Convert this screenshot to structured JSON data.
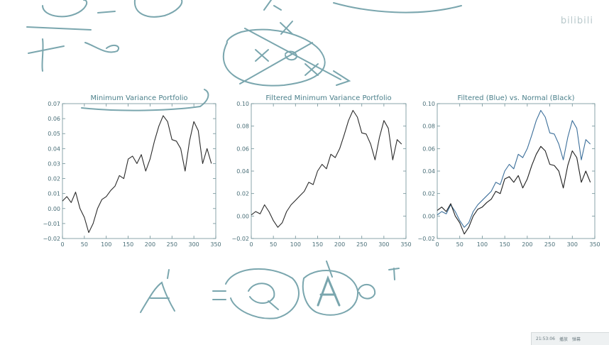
{
  "watermark": "bilibili",
  "taskbar": {
    "clock": "21:53:06",
    "item1": "播放",
    "item2": "弹幕"
  },
  "colors": {
    "line": "#2b2b2b",
    "axis": "#6e8f96",
    "text": "#4a7f8a",
    "ink": "#6e9aa3"
  },
  "chart_data": [
    {
      "type": "line",
      "title": "Minimum Variance Portfolio",
      "xlim": [
        0,
        350
      ],
      "ylim": [
        -0.02,
        0.07
      ],
      "xticks": [
        0,
        50,
        100,
        150,
        200,
        250,
        300,
        350
      ],
      "yticks": [
        -0.02,
        -0.01,
        0.0,
        0.01,
        0.02,
        0.03,
        0.04,
        0.05,
        0.06,
        0.07
      ],
      "ytick_labels": [
        "−0.02",
        "−0.01",
        "0.00",
        "0.01",
        "0.02",
        "0.03",
        "0.04",
        "0.05",
        "0.06",
        "0.07"
      ],
      "xtick_labels": [
        "0",
        "50",
        "100",
        "150",
        "200",
        "250",
        "300",
        "350"
      ],
      "grid": false,
      "series": [
        {
          "x": [
            0,
            10,
            20,
            30,
            40,
            50,
            60,
            70,
            80,
            90,
            100,
            110,
            120,
            130,
            140,
            150,
            160,
            170,
            180,
            190,
            200,
            210,
            220,
            230,
            240,
            250,
            260,
            270,
            280,
            290,
            300,
            310,
            320,
            330,
            340
          ],
          "y": [
            0.005,
            0.008,
            0.004,
            0.011,
            0.0,
            -0.006,
            -0.016,
            -0.01,
            0.0,
            0.006,
            0.008,
            0.012,
            0.015,
            0.022,
            0.02,
            0.033,
            0.035,
            0.03,
            0.036,
            0.025,
            0.033,
            0.045,
            0.055,
            0.062,
            0.058,
            0.046,
            0.045,
            0.04,
            0.025,
            0.045,
            0.058,
            0.052,
            0.03,
            0.04,
            0.03
          ]
        }
      ]
    },
    {
      "type": "line",
      "title": "Filtered Minimum Variance Portfolio",
      "xlim": [
        0,
        350
      ],
      "ylim": [
        -0.02,
        0.1
      ],
      "xticks": [
        0,
        50,
        100,
        150,
        200,
        250,
        300,
        350
      ],
      "yticks": [
        -0.02,
        0.0,
        0.02,
        0.04,
        0.06,
        0.08,
        0.1
      ],
      "ytick_labels": [
        "−0.02",
        "0.00",
        "0.02",
        "0.04",
        "0.06",
        "0.08",
        "0.10"
      ],
      "xtick_labels": [
        "0",
        "50",
        "100",
        "150",
        "200",
        "250",
        "300",
        "350"
      ],
      "grid": false,
      "series": [
        {
          "x": [
            0,
            10,
            20,
            30,
            40,
            50,
            60,
            70,
            80,
            90,
            100,
            110,
            120,
            130,
            140,
            150,
            160,
            170,
            180,
            190,
            200,
            210,
            220,
            230,
            240,
            250,
            260,
            270,
            280,
            290,
            300,
            310,
            320,
            330,
            340
          ],
          "y": [
            0.001,
            0.004,
            0.002,
            0.01,
            0.004,
            -0.004,
            -0.01,
            -0.006,
            0.004,
            0.01,
            0.014,
            0.018,
            0.022,
            0.03,
            0.028,
            0.04,
            0.046,
            0.042,
            0.055,
            0.052,
            0.06,
            0.072,
            0.085,
            0.094,
            0.088,
            0.074,
            0.073,
            0.064,
            0.05,
            0.07,
            0.085,
            0.078,
            0.05,
            0.068,
            0.064
          ]
        }
      ]
    },
    {
      "type": "line",
      "title": "Filtered (Blue) vs. Normal (Black)",
      "xlim": [
        0,
        350
      ],
      "ylim": [
        -0.02,
        0.1
      ],
      "xticks": [
        0,
        50,
        100,
        150,
        200,
        250,
        300,
        350
      ],
      "yticks": [
        -0.02,
        0.0,
        0.02,
        0.04,
        0.06,
        0.08,
        0.1
      ],
      "ytick_labels": [
        "−0.02",
        "0.00",
        "0.02",
        "0.04",
        "0.06",
        "0.08",
        "0.10"
      ],
      "xtick_labels": [
        "0",
        "50",
        "100",
        "150",
        "200",
        "250",
        "300",
        "350"
      ],
      "grid": false,
      "series": [
        {
          "x": [
            0,
            10,
            20,
            30,
            40,
            50,
            60,
            70,
            80,
            90,
            100,
            110,
            120,
            130,
            140,
            150,
            160,
            170,
            180,
            190,
            200,
            210,
            220,
            230,
            240,
            250,
            260,
            270,
            280,
            290,
            300,
            310,
            320,
            330,
            340
          ],
          "y": [
            0.001,
            0.004,
            0.002,
            0.01,
            0.004,
            -0.004,
            -0.01,
            -0.006,
            0.004,
            0.01,
            0.014,
            0.018,
            0.022,
            0.03,
            0.028,
            0.04,
            0.046,
            0.042,
            0.055,
            0.052,
            0.06,
            0.072,
            0.085,
            0.094,
            0.088,
            0.074,
            0.073,
            0.064,
            0.05,
            0.07,
            0.085,
            0.078,
            0.05,
            0.068,
            0.064
          ],
          "color": "#3c6f9a"
        },
        {
          "x": [
            0,
            10,
            20,
            30,
            40,
            50,
            60,
            70,
            80,
            90,
            100,
            110,
            120,
            130,
            140,
            150,
            160,
            170,
            180,
            190,
            200,
            210,
            220,
            230,
            240,
            250,
            260,
            270,
            280,
            290,
            300,
            310,
            320,
            330,
            340
          ],
          "y": [
            0.005,
            0.008,
            0.004,
            0.011,
            0.0,
            -0.006,
            -0.016,
            -0.01,
            0.0,
            0.006,
            0.008,
            0.012,
            0.015,
            0.022,
            0.02,
            0.033,
            0.035,
            0.03,
            0.036,
            0.025,
            0.033,
            0.045,
            0.055,
            0.062,
            0.058,
            0.046,
            0.045,
            0.04,
            0.025,
            0.045,
            0.058,
            0.052,
            0.03,
            0.04,
            0.03
          ],
          "color": "#1e1e1e"
        }
      ]
    }
  ]
}
